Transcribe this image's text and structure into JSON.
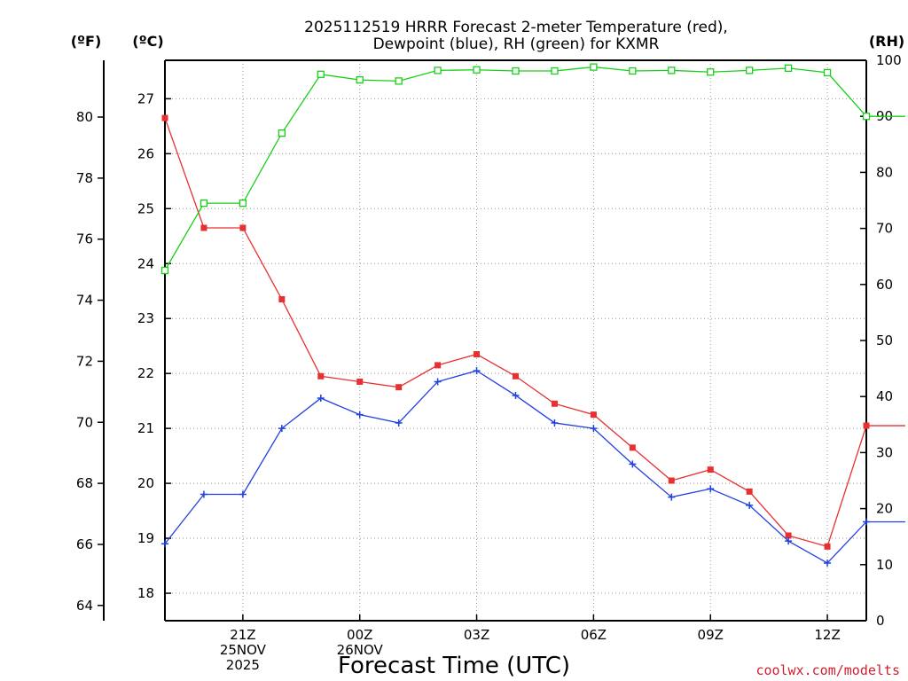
{
  "chart_data": {
    "type": "line",
    "title_line1": "2025112519 HRRR Forecast 2-meter Temperature (red),",
    "title_line2": "Dewpoint (blue), RH (green) for KXMR",
    "xlabel": "Forecast Time (UTC)",
    "credit": "coolwx.com/modelts",
    "units": {
      "fahrenheit": "(ºF)",
      "celsius": "(ºC)",
      "rh": "(RH)"
    },
    "x": [
      19,
      20,
      21,
      22,
      23,
      24,
      25,
      26,
      27,
      28,
      29,
      30,
      31,
      32,
      33,
      34,
      35,
      36,
      37,
      38
    ],
    "xlim": [
      19,
      37
    ],
    "x_ticks": [
      {
        "x": 21,
        "lines": [
          "21Z",
          "25NOV",
          "2025"
        ]
      },
      {
        "x": 24,
        "lines": [
          "00Z",
          "26NOV"
        ]
      },
      {
        "x": 27,
        "lines": [
          "03Z"
        ]
      },
      {
        "x": 30,
        "lines": [
          "06Z"
        ]
      },
      {
        "x": 33,
        "lines": [
          "09Z"
        ]
      },
      {
        "x": 36,
        "lines": [
          "12Z"
        ]
      }
    ],
    "celsius_axis": {
      "ylim": [
        17.5,
        27.7
      ],
      "ticks": [
        18,
        19,
        20,
        21,
        22,
        23,
        24,
        25,
        26,
        27
      ]
    },
    "fahrenheit_axis": {
      "ticks": [
        64,
        66,
        68,
        70,
        72,
        74,
        76,
        78,
        80
      ]
    },
    "rh_axis": {
      "ylim": [
        0,
        100
      ],
      "ticks": [
        0,
        10,
        20,
        30,
        40,
        50,
        60,
        70,
        80,
        90,
        100
      ]
    },
    "grid": true,
    "series": [
      {
        "name": "Temperature",
        "axis": "celsius",
        "color": "#e83030",
        "marker": "filled-square",
        "values": [
          26.65,
          24.65,
          24.65,
          23.35,
          21.95,
          21.85,
          21.75,
          22.15,
          22.35,
          21.95,
          21.45,
          21.25,
          20.65,
          20.05,
          20.25,
          19.85,
          19.05,
          18.85,
          21.05,
          21.05
        ]
      },
      {
        "name": "Dewpoint",
        "axis": "celsius",
        "color": "#2040e0",
        "marker": "plus",
        "values": [
          18.9,
          19.8,
          19.8,
          21.0,
          21.55,
          21.25,
          21.1,
          21.85,
          22.05,
          21.6,
          21.1,
          21.0,
          20.35,
          19.75,
          19.9,
          19.6,
          18.95,
          18.55,
          19.3,
          19.3
        ]
      },
      {
        "name": "RH",
        "axis": "rh",
        "color": "#18d018",
        "marker": "open-square",
        "values": [
          62.5,
          74.5,
          74.5,
          87,
          97.5,
          96.5,
          96.3,
          98.2,
          98.3,
          98.1,
          98.1,
          98.8,
          98.1,
          98.2,
          97.9,
          98.2,
          98.6,
          97.8,
          90,
          90
        ]
      }
    ]
  }
}
